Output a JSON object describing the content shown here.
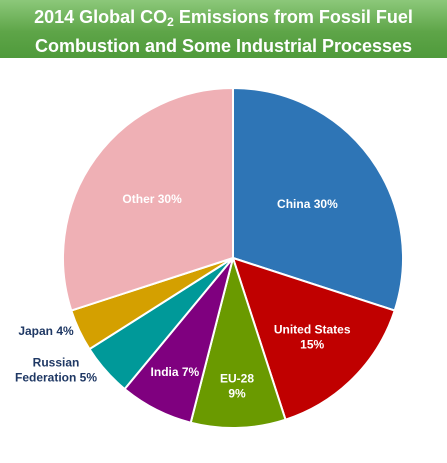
{
  "title": {
    "line1_prefix": "2014 Global CO",
    "line1_subscript": "2",
    "line1_suffix": " Emissions from Fossil Fuel",
    "line2": "Combustion and Some Industrial Processes"
  },
  "chart_data": {
    "type": "pie",
    "start": "12 o'clock",
    "direction": "clockwise",
    "slices": [
      {
        "label": "China",
        "value": 30,
        "text": "China 30%",
        "color": "#2e75b6",
        "label_color": "#ffffff",
        "label_inside": true
      },
      {
        "label": "United States",
        "value": 15,
        "text": "United States\n15%",
        "color": "#c00000",
        "label_color": "#ffffff",
        "label_inside": true
      },
      {
        "label": "EU-28",
        "value": 9,
        "text": "EU-28\n9%",
        "color": "#6a9a00",
        "label_color": "#ffffff",
        "label_inside": true
      },
      {
        "label": "India",
        "value": 7,
        "text": "India 7%",
        "color": "#7f007f",
        "label_color": "#ffffff",
        "label_inside": true
      },
      {
        "label": "Russian Federation",
        "value": 5,
        "text": "Russian\nFederation 5%",
        "color": "#009999",
        "label_color": "#1f3864",
        "label_inside": false
      },
      {
        "label": "Japan",
        "value": 4,
        "text": "Japan 4%",
        "color": "#d4a000",
        "label_color": "#1f3864",
        "label_inside": false
      },
      {
        "label": "Other",
        "value": 30,
        "text": "Other 30%",
        "color": "#efb0b5",
        "label_color": "#ffffff",
        "label_inside": true
      }
    ]
  }
}
